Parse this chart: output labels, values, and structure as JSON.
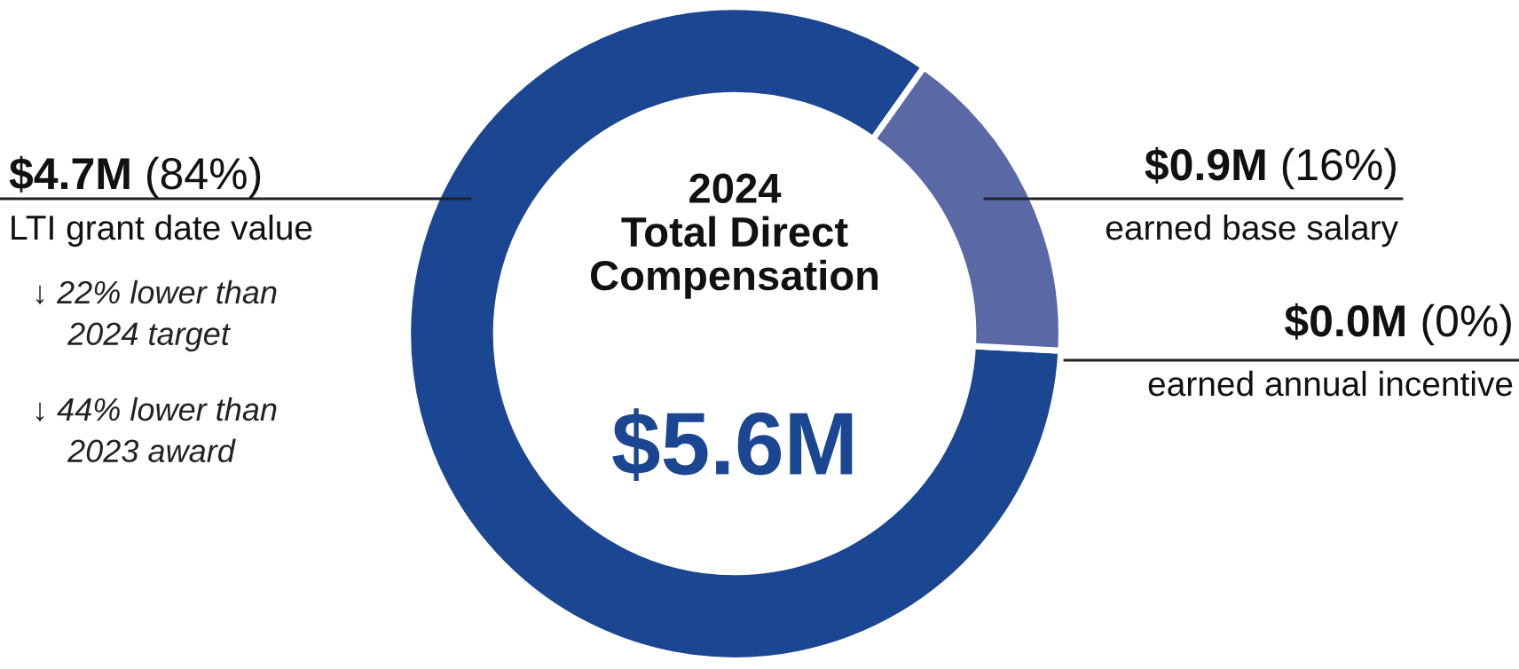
{
  "chart_data": {
    "type": "donut",
    "title": "2024\nTotal Direct\nCompensation",
    "categories": [
      "LTI grant date value",
      "earned base salary",
      "earned annual incentive"
    ],
    "values": [
      84,
      16,
      0
    ],
    "colors": [
      "#1b4692",
      "#5b68a6",
      "#9aa6cf"
    ],
    "value_labels": [
      "$4.7M (84%)",
      "$0.9M (16%)",
      "$0.0M (0%)"
    ],
    "annotations": [
      "$5.6M",
      "↓ 22% lower than\n    2024 target",
      "↓ 44% lower than\n    2023 award"
    ]
  }
}
